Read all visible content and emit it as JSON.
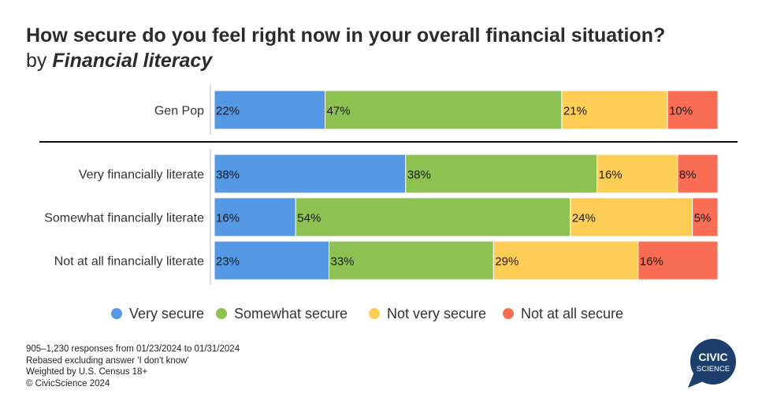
{
  "header": {
    "title": "How secure do you feel right now in your overall financial situation?",
    "subtitle_prefix": "by ",
    "subtitle_emphasis": "Financial literacy"
  },
  "chart_data": {
    "type": "bar",
    "orientation": "horizontal",
    "stacked": true,
    "normalized_percent": true,
    "categories": [
      "Gen Pop",
      "Very financially literate",
      "Somewhat financially literate",
      "Not at all financially literate"
    ],
    "series": [
      {
        "name": "Very secure",
        "color": "#5598e4",
        "values": [
          22,
          38,
          16,
          23
        ],
        "labels": [
          "22%",
          "38%",
          "16%",
          "23%"
        ]
      },
      {
        "name": "Somewhat secure",
        "color": "#8dc152",
        "values": [
          47,
          38,
          54,
          33
        ],
        "labels": [
          "47%",
          "38%",
          "54%",
          "33%"
        ]
      },
      {
        "name": "Not very secure",
        "color": "#fdcd55",
        "values": [
          21,
          16,
          24,
          29
        ],
        "labels": [
          "21%",
          "16%",
          "24%",
          "29%"
        ]
      },
      {
        "name": "Not at all secure",
        "color": "#f96d55",
        "values": [
          10,
          8,
          5,
          16
        ],
        "labels": [
          "10%",
          "8%",
          "5%",
          "16%"
        ]
      }
    ],
    "legend_position": "bottom",
    "grid": false
  },
  "notes": [
    "905–1,230 responses from 01/23/2024 to 01/31/2024",
    "Rebased excluding answer 'I don't know'",
    "Weighted by U.S. Census 18+",
    "© CivicScience 2024"
  ],
  "logo": {
    "line1": "CIVIC",
    "line2": "SCIENCE",
    "color": "#1c3f6e"
  }
}
